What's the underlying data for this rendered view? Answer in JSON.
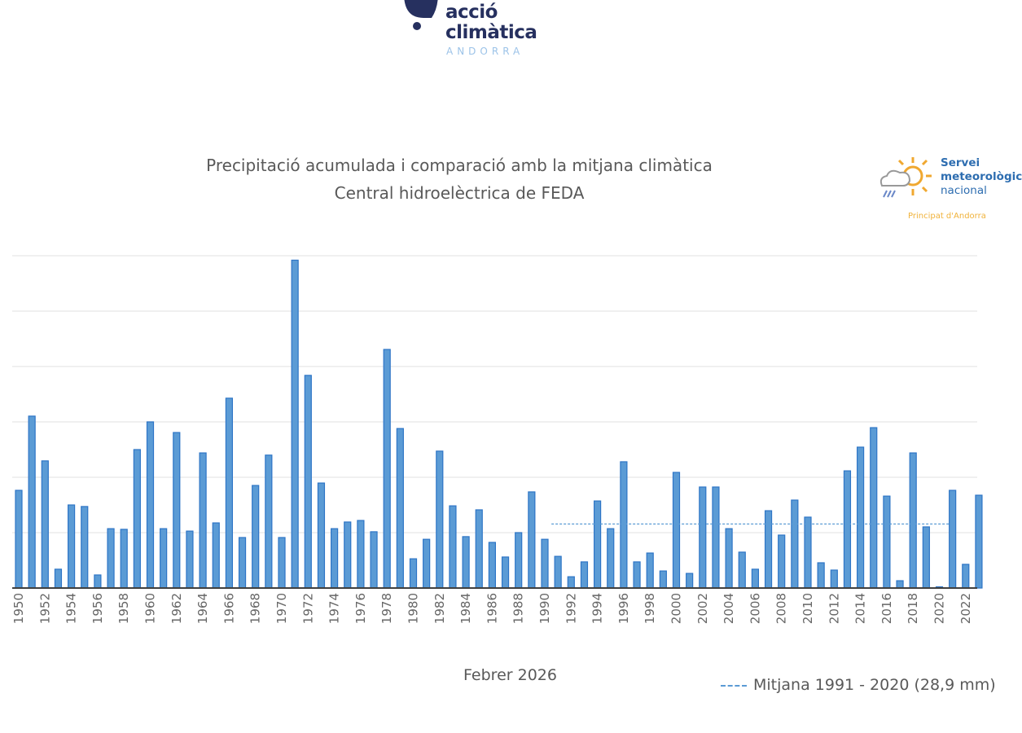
{
  "logo_top": {
    "line1": "acció",
    "line2": "climàtica",
    "line3": "ANDORRA"
  },
  "logo_right": {
    "line1": "Servei",
    "line2": "meteorològic",
    "line3": "nacional",
    "sub": "Principat d'Andorra"
  },
  "chart_data": {
    "type": "bar",
    "title": "Precipitació acumulada i comparació amb la mitjana climàtica",
    "subtitle": "Central hidroelèctrica de FEDA",
    "xlabel": "Febrer 2026",
    "ylabel": "",
    "ylim": [
      0,
      150
    ],
    "y_grid_step": 25,
    "grid": true,
    "y_tick_labels_visible": false,
    "bar_color": "#5b9bd5",
    "bar_edge_color": "#2e75c6",
    "categories": [
      1950,
      1951,
      1952,
      1953,
      1954,
      1955,
      1956,
      1957,
      1958,
      1959,
      1960,
      1961,
      1962,
      1963,
      1964,
      1965,
      1966,
      1967,
      1968,
      1969,
      1970,
      1971,
      1972,
      1973,
      1974,
      1975,
      1976,
      1977,
      1978,
      1979,
      1980,
      1981,
      1982,
      1983,
      1984,
      1985,
      1986,
      1987,
      1988,
      1989,
      1990,
      1991,
      1992,
      1993,
      1994,
      1995,
      1996,
      1997,
      1998,
      1999,
      2000,
      2001,
      2002,
      2003,
      2004,
      2005,
      2006,
      2007,
      2008,
      2009,
      2010,
      2011,
      2012,
      2013,
      2014,
      2015,
      2016,
      2017,
      2018,
      2019,
      2020,
      2021,
      2022,
      2023
    ],
    "tick_labels": [
      "1950",
      "1952",
      "1954",
      "1956",
      "1958",
      "1960",
      "1962",
      "1964",
      "1966",
      "1968",
      "1970",
      "1972",
      "1974",
      "1976",
      "1978",
      "1980",
      "1982",
      "1984",
      "1986",
      "1988",
      "1990",
      "1992",
      "1994",
      "1996",
      "1998",
      "2000",
      "2002",
      "2004",
      "2006",
      "2008",
      "2010",
      "2012",
      "2014",
      "2016",
      "2018",
      "2020",
      "2022"
    ],
    "values": [
      44.1,
      77.6,
      57.4,
      8.5,
      37.5,
      36.8,
      5.9,
      26.8,
      26.5,
      62.5,
      75.0,
      26.8,
      70.2,
      25.7,
      61.0,
      29.4,
      85.7,
      22.8,
      46.3,
      60.0,
      22.8,
      148.0,
      96.0,
      47.4,
      26.8,
      29.8,
      30.5,
      25.4,
      107.7,
      72.0,
      13.2,
      22.0,
      61.8,
      37.1,
      23.2,
      35.3,
      20.6,
      14.0,
      25.0,
      43.4,
      22.0,
      14.3,
      5.1,
      11.8,
      39.3,
      26.8,
      57.0,
      11.8,
      15.8,
      7.7,
      52.2,
      6.6,
      45.6,
      45.6,
      26.8,
      16.2,
      8.5,
      34.9,
      23.9,
      39.7,
      32.0,
      11.4,
      8.1,
      52.9,
      63.6,
      72.4,
      41.5,
      3.3,
      61.0,
      27.6,
      0.4,
      44.1,
      10.7,
      41.9
    ],
    "reference_line": {
      "label": "Mitjana 1991 - 2020 (28,9 mm)",
      "value": 28.9,
      "from": 1991,
      "to": 2020,
      "color": "#5b9bd5",
      "style": "dashed"
    },
    "legend": "bottom-right"
  }
}
